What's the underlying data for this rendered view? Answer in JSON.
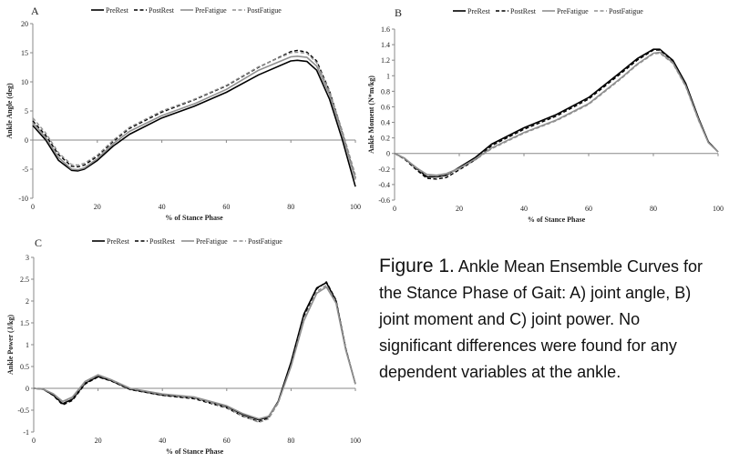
{
  "chart_data": [
    {
      "type": "line",
      "panel_label": "A",
      "xlabel": "% of Stance Phase",
      "ylabel": "Ankle Angle (deg)",
      "xlim": [
        0,
        100
      ],
      "ylim": [
        -10,
        20
      ],
      "xticks": [
        0,
        20,
        40,
        60,
        80,
        100
      ],
      "yticks": [
        -10,
        -5,
        0,
        5,
        10,
        15,
        20
      ],
      "legend": "top-right",
      "grid": false,
      "series": [
        {
          "name": "PreRest",
          "x": [
            0,
            4,
            8,
            12,
            14,
            16,
            20,
            25,
            30,
            40,
            50,
            60,
            70,
            80,
            82,
            85,
            88,
            92,
            96,
            100
          ],
          "y": [
            2.5,
            0.0,
            -3.5,
            -5.2,
            -5.3,
            -5.0,
            -3.5,
            -1.0,
            1.0,
            3.8,
            5.8,
            8.2,
            11.2,
            13.6,
            13.7,
            13.5,
            12.0,
            7.0,
            0.0,
            -8.0
          ]
        },
        {
          "name": "PostRest",
          "x": [
            0,
            4,
            8,
            12,
            14,
            16,
            20,
            25,
            30,
            40,
            50,
            60,
            70,
            80,
            82,
            85,
            88,
            92,
            96,
            100
          ],
          "y": [
            3.3,
            0.8,
            -2.5,
            -4.5,
            -4.6,
            -4.3,
            -2.8,
            -0.2,
            2.0,
            4.8,
            6.9,
            9.3,
            12.5,
            15.2,
            15.4,
            15.1,
            13.6,
            8.4,
            1.2,
            -6.5
          ]
        },
        {
          "name": "PreFatigue",
          "x": [
            0,
            4,
            8,
            12,
            14,
            16,
            20,
            25,
            30,
            40,
            50,
            60,
            70,
            80,
            82,
            85,
            88,
            92,
            96,
            100
          ],
          "y": [
            3.0,
            0.4,
            -3.0,
            -5.0,
            -5.1,
            -4.8,
            -3.2,
            -0.6,
            1.5,
            4.2,
            6.2,
            8.7,
            12.0,
            14.3,
            14.4,
            14.2,
            12.7,
            7.8,
            1.0,
            -6.8
          ]
        },
        {
          "name": "PostFatigue",
          "x": [
            0,
            4,
            8,
            12,
            14,
            16,
            20,
            25,
            30,
            40,
            50,
            60,
            70,
            80,
            82,
            85,
            88,
            92,
            96,
            100
          ],
          "y": [
            3.8,
            1.2,
            -2.2,
            -4.2,
            -4.3,
            -4.0,
            -2.6,
            0.0,
            2.2,
            5.0,
            7.0,
            9.4,
            12.6,
            15.0,
            15.1,
            14.9,
            13.3,
            8.3,
            1.5,
            -6.0
          ]
        }
      ]
    },
    {
      "type": "line",
      "panel_label": "B",
      "xlabel": "% of Stance Phase",
      "ylabel": "Ankle Moment (N*m/kg)",
      "xlim": [
        0,
        100
      ],
      "ylim": [
        -0.6,
        1.6
      ],
      "xticks": [
        0,
        20,
        40,
        60,
        80,
        100
      ],
      "yticks": [
        -0.6,
        -0.4,
        -0.2,
        0,
        0.2,
        0.4,
        0.6,
        0.8,
        1,
        1.2,
        1.4,
        1.6
      ],
      "legend": "top-right",
      "grid": false,
      "series": [
        {
          "name": "PreRest",
          "x": [
            0,
            3,
            7,
            10,
            13,
            16,
            20,
            25,
            30,
            40,
            50,
            60,
            70,
            75,
            80,
            82,
            86,
            90,
            94,
            97,
            100
          ],
          "y": [
            0,
            -0.06,
            -0.2,
            -0.3,
            -0.3,
            -0.28,
            -0.18,
            -0.05,
            0.12,
            0.33,
            0.5,
            0.72,
            1.05,
            1.22,
            1.34,
            1.34,
            1.2,
            0.9,
            0.45,
            0.15,
            0.02
          ]
        },
        {
          "name": "PostRest",
          "x": [
            0,
            3,
            7,
            10,
            13,
            16,
            20,
            25,
            30,
            40,
            50,
            60,
            70,
            75,
            80,
            82,
            86,
            90,
            94,
            97,
            100
          ],
          "y": [
            0,
            -0.07,
            -0.22,
            -0.32,
            -0.33,
            -0.31,
            -0.21,
            -0.08,
            0.1,
            0.31,
            0.48,
            0.7,
            1.03,
            1.2,
            1.33,
            1.33,
            1.19,
            0.89,
            0.44,
            0.15,
            0.02
          ]
        },
        {
          "name": "PreFatigue",
          "x": [
            0,
            3,
            7,
            10,
            13,
            16,
            20,
            25,
            30,
            40,
            50,
            60,
            70,
            75,
            80,
            82,
            86,
            90,
            94,
            97,
            100
          ],
          "y": [
            0,
            -0.06,
            -0.19,
            -0.27,
            -0.28,
            -0.26,
            -0.19,
            -0.07,
            0.07,
            0.27,
            0.43,
            0.64,
            0.97,
            1.15,
            1.29,
            1.3,
            1.17,
            0.87,
            0.43,
            0.14,
            0.02
          ]
        },
        {
          "name": "PostFatigue",
          "x": [
            0,
            3,
            7,
            10,
            13,
            16,
            20,
            25,
            30,
            40,
            50,
            60,
            70,
            75,
            80,
            82,
            86,
            90,
            94,
            97,
            100
          ],
          "y": [
            0,
            -0.06,
            -0.2,
            -0.28,
            -0.29,
            -0.27,
            -0.2,
            -0.08,
            0.06,
            0.26,
            0.42,
            0.63,
            0.96,
            1.14,
            1.28,
            1.29,
            1.16,
            0.86,
            0.42,
            0.14,
            0.02
          ]
        }
      ]
    },
    {
      "type": "line",
      "panel_label": "C",
      "xlabel": "% of Stance Phase",
      "ylabel": "Ankle Power (J/kg)",
      "xlim": [
        0,
        100
      ],
      "ylim": [
        -1,
        3
      ],
      "xticks": [
        0,
        20,
        40,
        60,
        80,
        100
      ],
      "yticks": [
        -1,
        -0.5,
        0,
        0.5,
        1,
        1.5,
        2,
        2.5,
        3
      ],
      "legend": "top-right",
      "grid": false,
      "series": [
        {
          "name": "PreRest",
          "x": [
            0,
            3,
            6,
            9,
            12,
            16,
            20,
            24,
            30,
            40,
            50,
            60,
            65,
            70,
            73,
            76,
            80,
            84,
            88,
            91,
            94,
            97,
            100
          ],
          "y": [
            0,
            -0.02,
            -0.15,
            -0.35,
            -0.25,
            0.12,
            0.27,
            0.18,
            -0.02,
            -0.15,
            -0.22,
            -0.42,
            -0.6,
            -0.72,
            -0.65,
            -0.3,
            0.6,
            1.7,
            2.3,
            2.42,
            2.0,
            0.9,
            0.1
          ]
        },
        {
          "name": "PostRest",
          "x": [
            0,
            3,
            6,
            9,
            12,
            16,
            20,
            24,
            30,
            40,
            50,
            60,
            65,
            70,
            73,
            76,
            80,
            84,
            88,
            91,
            94,
            97,
            100
          ],
          "y": [
            0,
            -0.02,
            -0.16,
            -0.38,
            -0.28,
            0.1,
            0.26,
            0.17,
            -0.03,
            -0.16,
            -0.24,
            -0.45,
            -0.64,
            -0.76,
            -0.68,
            -0.32,
            0.55,
            1.65,
            2.28,
            2.44,
            2.02,
            0.92,
            0.1
          ]
        },
        {
          "name": "PreFatigue",
          "x": [
            0,
            3,
            6,
            9,
            12,
            16,
            20,
            24,
            30,
            40,
            50,
            60,
            65,
            70,
            73,
            76,
            80,
            84,
            88,
            91,
            94,
            97,
            100
          ],
          "y": [
            0,
            -0.02,
            -0.12,
            -0.3,
            -0.2,
            0.16,
            0.31,
            0.2,
            0.0,
            -0.13,
            -0.2,
            -0.4,
            -0.58,
            -0.7,
            -0.64,
            -0.32,
            0.5,
            1.55,
            2.18,
            2.32,
            1.95,
            0.88,
            0.1
          ]
        },
        {
          "name": "PostFatigue",
          "x": [
            0,
            3,
            6,
            9,
            12,
            16,
            20,
            24,
            30,
            40,
            50,
            60,
            65,
            70,
            73,
            76,
            80,
            84,
            88,
            91,
            94,
            97,
            100
          ],
          "y": [
            0,
            -0.02,
            -0.13,
            -0.32,
            -0.22,
            0.14,
            0.3,
            0.19,
            -0.01,
            -0.14,
            -0.22,
            -0.44,
            -0.63,
            -0.78,
            -0.7,
            -0.34,
            0.52,
            1.6,
            2.22,
            2.36,
            1.98,
            0.9,
            0.1
          ]
        }
      ]
    }
  ],
  "caption": {
    "lead": "Figure 1.",
    "text": " Ankle Mean Ensemble Curves for the Stance Phase of Gait: A) joint angle, B) joint moment and C) joint power.  No significant differences were found for any dependent variables at the ankle."
  },
  "styles": {
    "PreRest": {
      "color": "#000000",
      "dash": "",
      "width": 1.6
    },
    "PostRest": {
      "color": "#000000",
      "dash": "4 2.5",
      "width": 1.4
    },
    "PreFatigue": {
      "color": "#909090",
      "dash": "",
      "width": 1.6
    },
    "PostFatigue": {
      "color": "#909090",
      "dash": "4 2.5",
      "width": 1.4
    }
  }
}
